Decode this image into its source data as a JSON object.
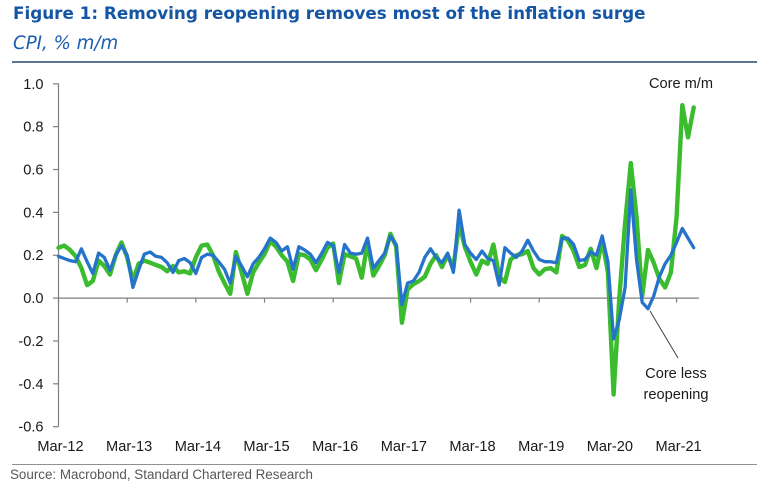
{
  "header": {
    "title": "Figure 1: Removing reopening removes most of the inflation surge",
    "subtitle": "CPI, % m/m"
  },
  "footer": {
    "source": "Source: Macrobond, Standard Chartered Research"
  },
  "annotations": {
    "core_label": "Core m/m",
    "core_less_label": "Core less reopening"
  },
  "colors": {
    "title_blue": "#1455A4",
    "core_green": "#3ABC2E",
    "core_less_blue": "#2573CB",
    "axis_gray": "#7F7F7F",
    "rule_gray": "#5E7392",
    "label_black": "#1a1a1a",
    "source_gray": "#575757"
  },
  "chart_data": {
    "type": "line",
    "title": "CPI, % m/m",
    "xlabel": "",
    "ylabel": "",
    "ylim": [
      -0.6,
      1.0
    ],
    "grid": false,
    "legend_position": "annotated on chart",
    "ytick_labels": [
      "1.0",
      "0.8",
      "0.6",
      "0.4",
      "0.2",
      "0.0",
      "-0.2",
      "-0.4",
      "-0.6"
    ],
    "ytick_values": [
      1.0,
      0.8,
      0.6,
      0.4,
      0.2,
      0.0,
      -0.2,
      -0.4,
      -0.6
    ],
    "xtick_labels": [
      "Mar-12",
      "Mar-13",
      "Mar-14",
      "Mar-15",
      "Mar-16",
      "Mar-17",
      "Mar-18",
      "Mar-19",
      "Mar-20",
      "Mar-21"
    ],
    "x": [
      "Mar-12",
      "Apr-12",
      "May-12",
      "Jun-12",
      "Jul-12",
      "Aug-12",
      "Sep-12",
      "Oct-12",
      "Nov-12",
      "Dec-12",
      "Jan-13",
      "Feb-13",
      "Mar-13",
      "Apr-13",
      "May-13",
      "Jun-13",
      "Jul-13",
      "Aug-13",
      "Sep-13",
      "Oct-13",
      "Nov-13",
      "Dec-13",
      "Jan-14",
      "Feb-14",
      "Mar-14",
      "Apr-14",
      "May-14",
      "Jun-14",
      "Jul-14",
      "Aug-14",
      "Sep-14",
      "Oct-14",
      "Nov-14",
      "Dec-14",
      "Jan-15",
      "Feb-15",
      "Mar-15",
      "Apr-15",
      "May-15",
      "Jun-15",
      "Jul-15",
      "Aug-15",
      "Sep-15",
      "Oct-15",
      "Nov-15",
      "Dec-15",
      "Jan-16",
      "Feb-16",
      "Mar-16",
      "Apr-16",
      "May-16",
      "Jun-16",
      "Jul-16",
      "Aug-16",
      "Sep-16",
      "Oct-16",
      "Nov-16",
      "Dec-16",
      "Jan-17",
      "Feb-17",
      "Mar-17",
      "Apr-17",
      "May-17",
      "Jun-17",
      "Jul-17",
      "Aug-17",
      "Sep-17",
      "Oct-17",
      "Nov-17",
      "Dec-17",
      "Jan-18",
      "Feb-18",
      "Mar-18",
      "Apr-18",
      "May-18",
      "Jun-18",
      "Jul-18",
      "Aug-18",
      "Sep-18",
      "Oct-18",
      "Nov-18",
      "Dec-18",
      "Jan-19",
      "Feb-19",
      "Mar-19",
      "Apr-19",
      "May-19",
      "Jun-19",
      "Jul-19",
      "Aug-19",
      "Sep-19",
      "Oct-19",
      "Nov-19",
      "Dec-19",
      "Jan-20",
      "Feb-20",
      "Mar-20",
      "Apr-20",
      "May-20",
      "Jun-20",
      "Jul-20",
      "Aug-20",
      "Sep-20",
      "Oct-20",
      "Nov-20",
      "Dec-20",
      "Jan-21",
      "Feb-21",
      "Mar-21",
      "Apr-21",
      "May-21",
      "Jun-21"
    ],
    "series": [
      {
        "name": "Core m/m",
        "color": "#3ABC2E",
        "values": [
          0.235,
          0.245,
          0.225,
          0.195,
          0.14,
          0.06,
          0.08,
          0.175,
          0.15,
          0.11,
          0.2,
          0.26,
          0.19,
          0.08,
          0.16,
          0.175,
          0.165,
          0.155,
          0.145,
          0.125,
          0.15,
          0.12,
          0.125,
          0.115,
          0.19,
          0.245,
          0.25,
          0.2,
          0.125,
          0.07,
          0.02,
          0.215,
          0.12,
          0.02,
          0.12,
          0.165,
          0.205,
          0.265,
          0.24,
          0.2,
          0.17,
          0.08,
          0.205,
          0.2,
          0.18,
          0.13,
          0.18,
          0.235,
          0.255,
          0.07,
          0.205,
          0.195,
          0.185,
          0.095,
          0.26,
          0.105,
          0.15,
          0.2,
          0.3,
          0.24,
          -0.115,
          0.04,
          0.065,
          0.08,
          0.1,
          0.16,
          0.2,
          0.145,
          0.2,
          0.14,
          0.35,
          0.24,
          0.17,
          0.11,
          0.175,
          0.16,
          0.25,
          0.1,
          0.075,
          0.18,
          0.2,
          0.205,
          0.22,
          0.14,
          0.11,
          0.135,
          0.14,
          0.12,
          0.29,
          0.27,
          0.22,
          0.145,
          0.155,
          0.23,
          0.14,
          0.27,
          0.12,
          -0.45,
          0.0,
          0.35,
          0.63,
          0.38,
          0.01,
          0.225,
          0.165,
          0.09,
          0.05,
          0.12,
          0.38,
          0.9,
          0.75,
          0.89
        ]
      },
      {
        "name": "Core less reopening",
        "color": "#2573CB",
        "values": [
          0.195,
          0.185,
          0.175,
          0.17,
          0.23,
          0.17,
          0.115,
          0.21,
          0.19,
          0.13,
          0.2,
          0.245,
          0.2,
          0.05,
          0.13,
          0.205,
          0.215,
          0.195,
          0.19,
          0.165,
          0.12,
          0.175,
          0.185,
          0.165,
          0.115,
          0.19,
          0.205,
          0.2,
          0.17,
          0.135,
          0.07,
          0.195,
          0.15,
          0.1,
          0.16,
          0.19,
          0.23,
          0.28,
          0.26,
          0.22,
          0.24,
          0.135,
          0.24,
          0.225,
          0.205,
          0.165,
          0.21,
          0.26,
          0.245,
          0.12,
          0.25,
          0.21,
          0.205,
          0.21,
          0.28,
          0.14,
          0.175,
          0.21,
          0.29,
          0.25,
          -0.03,
          0.07,
          0.08,
          0.12,
          0.19,
          0.23,
          0.19,
          0.165,
          0.21,
          0.12,
          0.41,
          0.25,
          0.21,
          0.18,
          0.22,
          0.185,
          0.175,
          0.06,
          0.235,
          0.21,
          0.19,
          0.22,
          0.27,
          0.22,
          0.18,
          0.17,
          0.17,
          0.165,
          0.28,
          0.28,
          0.25,
          0.175,
          0.18,
          0.215,
          0.2,
          0.29,
          0.17,
          -0.19,
          -0.1,
          0.05,
          0.505,
          0.18,
          -0.02,
          -0.05,
          0.01,
          0.1,
          0.16,
          0.2,
          0.26,
          0.325,
          0.28,
          0.235
        ]
      }
    ]
  }
}
